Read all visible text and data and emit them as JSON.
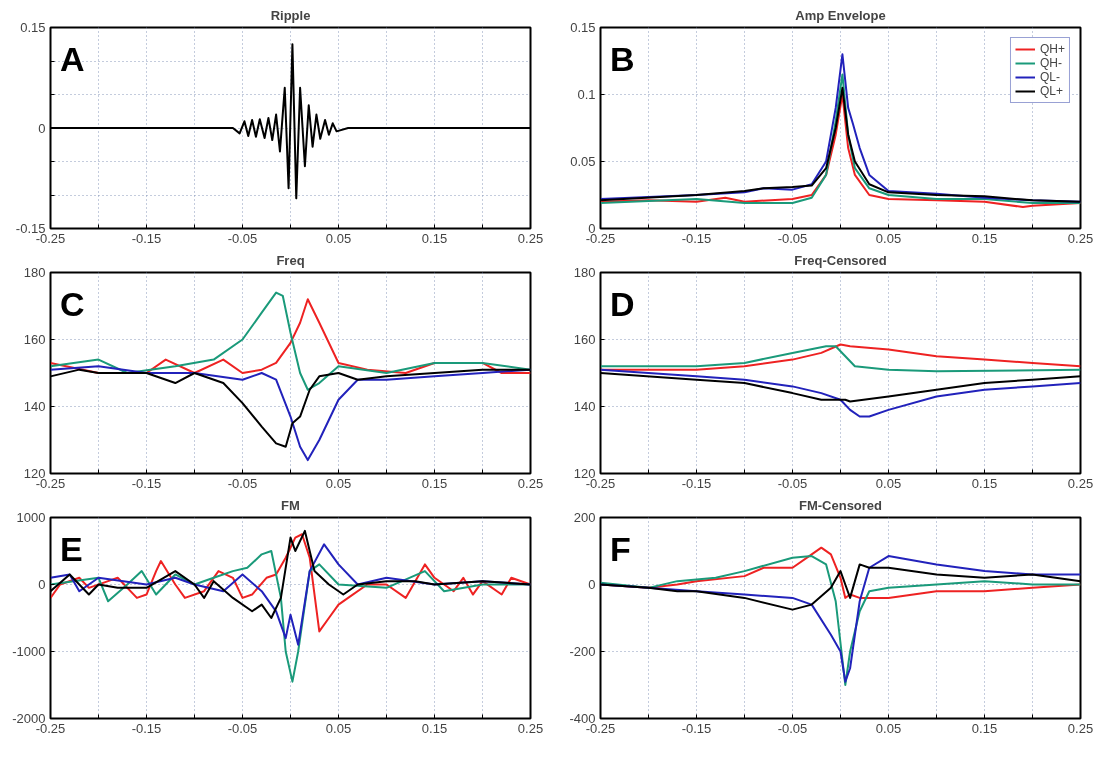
{
  "chart_data": [
    {
      "type": "line",
      "title": "Ripple",
      "annotations": [
        "A"
      ],
      "xlim": [
        -0.25,
        0.25
      ],
      "ylim": [
        -0.15,
        0.15
      ],
      "xticks": [
        -0.25,
        {
          "value": -0.2,
          "label": null
        },
        -0.15,
        {
          "value": -0.1,
          "label": null
        },
        -0.05,
        {
          "value": 0,
          "label": null
        },
        0.05,
        {
          "value": 0.1,
          "label": null
        },
        0.15,
        {
          "value": 0.2,
          "label": null
        },
        0.25
      ],
      "yticks": [
        -0.15,
        {
          "value": -0.1,
          "label": null
        },
        {
          "value": -0.05,
          "label": null
        },
        0,
        {
          "value": 0.05,
          "label": null
        },
        {
          "value": 0.1,
          "label": null
        },
        0.15
      ],
      "grid": true,
      "series": [
        {
          "color": "#000000",
          "x": [
            -0.25,
            -0.06,
            -0.053,
            -0.048,
            -0.044,
            -0.04,
            -0.036,
            -0.032,
            -0.027,
            -0.023,
            -0.019,
            -0.015,
            -0.011,
            -0.006,
            -0.002,
            0.002,
            0.006,
            0.01,
            0.015,
            0.019,
            0.023,
            0.027,
            0.031,
            0.036,
            0.04,
            0.044,
            0.048,
            0.06,
            0.25
          ],
          "values": [
            0,
            0,
            -0.008,
            0.01,
            -0.012,
            0.012,
            -0.013,
            0.013,
            -0.015,
            0.015,
            -0.018,
            0.02,
            -0.035,
            0.06,
            -0.09,
            0.125,
            -0.105,
            0.06,
            -0.057,
            0.034,
            -0.028,
            0.02,
            -0.016,
            0.012,
            -0.01,
            0.007,
            -0.005,
            0,
            0
          ]
        }
      ]
    },
    {
      "type": "line",
      "title": "Amp Envelope",
      "annotations": [
        "B"
      ],
      "xlim": [
        -0.25,
        0.25
      ],
      "ylim": [
        0,
        0.15
      ],
      "xticks": [
        -0.25,
        {
          "value": -0.2,
          "label": null
        },
        -0.15,
        {
          "value": -0.1,
          "label": null
        },
        -0.05,
        {
          "value": 0,
          "label": null
        },
        0.05,
        {
          "value": 0.1,
          "label": null
        },
        0.15,
        {
          "value": 0.2,
          "label": null
        },
        0.25
      ],
      "yticks": [
        0,
        0.05,
        0.1,
        0.15
      ],
      "grid": true,
      "legend": "top right",
      "series": [
        {
          "name": "QH+",
          "color": "#ee2222",
          "x": [
            -0.25,
            -0.2,
            -0.15,
            -0.12,
            -0.1,
            -0.05,
            -0.03,
            -0.015,
            -0.005,
            0.002,
            0.008,
            0.015,
            0.03,
            0.05,
            0.1,
            0.15,
            0.19,
            0.2,
            0.25
          ],
          "values": [
            0.02,
            0.021,
            0.02,
            0.023,
            0.02,
            0.022,
            0.025,
            0.04,
            0.07,
            0.1,
            0.06,
            0.04,
            0.025,
            0.022,
            0.021,
            0.02,
            0.016,
            0.017,
            0.019
          ]
        },
        {
          "name": "QH-",
          "color": "#1a9a7a",
          "x": [
            -0.25,
            -0.15,
            -0.1,
            -0.05,
            -0.03,
            -0.015,
            -0.005,
            0.002,
            0.008,
            0.015,
            0.03,
            0.05,
            0.1,
            0.15,
            0.2,
            0.25
          ],
          "values": [
            0.019,
            0.022,
            0.019,
            0.019,
            0.023,
            0.04,
            0.08,
            0.115,
            0.07,
            0.045,
            0.03,
            0.025,
            0.022,
            0.022,
            0.019,
            0.019
          ]
        },
        {
          "name": "QL-",
          "color": "#2222bb",
          "x": [
            -0.25,
            -0.15,
            -0.1,
            -0.08,
            -0.05,
            -0.03,
            -0.015,
            -0.005,
            0.002,
            0.008,
            0.013,
            0.02,
            0.03,
            0.05,
            0.1,
            0.15,
            0.2,
            0.25
          ],
          "values": [
            0.022,
            0.025,
            0.027,
            0.03,
            0.029,
            0.033,
            0.05,
            0.09,
            0.13,
            0.09,
            0.078,
            0.06,
            0.04,
            0.028,
            0.026,
            0.023,
            0.021,
            0.02
          ]
        },
        {
          "name": "QL+",
          "color": "#000000",
          "x": [
            -0.25,
            -0.15,
            -0.1,
            -0.08,
            -0.05,
            -0.03,
            -0.015,
            -0.005,
            0.002,
            0.008,
            0.015,
            0.03,
            0.05,
            0.1,
            0.15,
            0.2,
            0.25
          ],
          "values": [
            0.021,
            0.025,
            0.028,
            0.03,
            0.031,
            0.032,
            0.045,
            0.075,
            0.105,
            0.07,
            0.05,
            0.033,
            0.027,
            0.025,
            0.024,
            0.021,
            0.02
          ]
        }
      ]
    },
    {
      "type": "line",
      "title": "Freq",
      "annotations": [
        "C"
      ],
      "xlim": [
        -0.25,
        0.25
      ],
      "ylim": [
        120,
        180
      ],
      "xticks": [
        -0.25,
        {
          "value": -0.2,
          "label": null
        },
        -0.15,
        {
          "value": -0.1,
          "label": null
        },
        -0.05,
        {
          "value": 0,
          "label": null
        },
        0.05,
        {
          "value": 0.1,
          "label": null
        },
        0.15,
        {
          "value": 0.2,
          "label": null
        },
        0.25
      ],
      "yticks": [
        120,
        140,
        160,
        180
      ],
      "grid": true,
      "series": [
        {
          "color": "#ee2222",
          "x": [
            -0.25,
            -0.2,
            -0.15,
            -0.13,
            -0.1,
            -0.07,
            -0.05,
            -0.03,
            -0.015,
            0,
            0.01,
            0.018,
            0.03,
            0.05,
            0.08,
            0.12,
            0.15,
            0.2,
            0.22,
            0.25
          ],
          "values": [
            153,
            150,
            150,
            154,
            150,
            154,
            150,
            151,
            153,
            159,
            165,
            172,
            165,
            153,
            151,
            150,
            153,
            153,
            150,
            150
          ]
        },
        {
          "color": "#1a9a7a",
          "x": [
            -0.25,
            -0.2,
            -0.17,
            -0.12,
            -0.08,
            -0.05,
            -0.03,
            -0.015,
            -0.008,
            0,
            0.01,
            0.018,
            0.03,
            0.05,
            0.1,
            0.15,
            0.2,
            0.25
          ],
          "values": [
            152,
            154,
            150,
            152,
            154,
            160,
            168,
            174,
            173,
            162,
            150,
            145,
            147,
            152,
            150,
            153,
            153,
            151
          ]
        },
        {
          "color": "#2222bb",
          "x": [
            -0.25,
            -0.2,
            -0.15,
            -0.1,
            -0.05,
            -0.03,
            -0.015,
            0,
            0.01,
            0.018,
            0.03,
            0.05,
            0.07,
            0.1,
            0.15,
            0.2,
            0.25
          ],
          "values": [
            151,
            152,
            150,
            150,
            148,
            150,
            148,
            137,
            128,
            124,
            130,
            142,
            148,
            148,
            149,
            150,
            151
          ]
        },
        {
          "color": "#000000",
          "x": [
            -0.25,
            -0.22,
            -0.2,
            -0.15,
            -0.12,
            -0.1,
            -0.07,
            -0.05,
            -0.03,
            -0.015,
            -0.005,
            0.002,
            0.01,
            0.02,
            0.03,
            0.05,
            0.07,
            0.1,
            0.15,
            0.2,
            0.25
          ],
          "values": [
            149,
            151,
            150,
            150,
            147,
            150,
            147,
            141,
            134,
            129,
            128,
            135,
            137,
            145,
            149,
            150,
            148,
            149,
            150,
            151,
            151
          ]
        }
      ]
    },
    {
      "type": "line",
      "title": "Freq-Censored",
      "annotations": [
        "D"
      ],
      "xlim": [
        -0.25,
        0.25
      ],
      "ylim": [
        120,
        180
      ],
      "xticks": [
        -0.25,
        {
          "value": -0.2,
          "label": null
        },
        -0.15,
        {
          "value": -0.1,
          "label": null
        },
        -0.05,
        {
          "value": 0,
          "label": null
        },
        0.05,
        {
          "value": 0.1,
          "label": null
        },
        0.15,
        {
          "value": 0.2,
          "label": null
        },
        0.25
      ],
      "yticks": [
        120,
        140,
        160,
        180
      ],
      "grid": true,
      "series": [
        {
          "color": "#ee2222",
          "x": [
            -0.25,
            -0.15,
            -0.1,
            -0.05,
            -0.02,
            0,
            0.01,
            0.05,
            0.1,
            0.15,
            0.2,
            0.25
          ],
          "values": [
            151,
            151,
            152,
            154,
            156,
            158.5,
            158,
            157,
            155,
            154,
            153,
            152
          ]
        },
        {
          "color": "#1a9a7a",
          "x": [
            -0.25,
            -0.15,
            -0.1,
            -0.05,
            -0.015,
            -0.005,
            0.005,
            0.015,
            0.05,
            0.1,
            0.25
          ],
          "values": [
            152,
            152,
            153,
            156,
            158,
            158,
            155,
            152,
            151,
            150.5,
            151
          ]
        },
        {
          "color": "#2222bb",
          "x": [
            -0.25,
            -0.15,
            -0.1,
            -0.05,
            -0.02,
            0,
            0.01,
            0.02,
            0.03,
            0.05,
            0.1,
            0.15,
            0.2,
            0.25
          ],
          "values": [
            151,
            149,
            148,
            146,
            144,
            142,
            139,
            137,
            137,
            139,
            143,
            145,
            146,
            147
          ]
        },
        {
          "color": "#000000",
          "x": [
            -0.25,
            -0.15,
            -0.1,
            -0.05,
            -0.02,
            0,
            0.005,
            0.01,
            0.05,
            0.1,
            0.15,
            0.2,
            0.25
          ],
          "values": [
            150,
            148,
            147,
            144,
            142,
            142,
            142,
            141.5,
            143,
            145,
            147,
            148,
            149
          ]
        }
      ]
    },
    {
      "type": "line",
      "title": "FM",
      "annotations": [
        "E"
      ],
      "xlim": [
        -0.25,
        0.25
      ],
      "ylim": [
        -2000,
        1000
      ],
      "xticks": [
        -0.25,
        {
          "value": -0.2,
          "label": null
        },
        -0.15,
        {
          "value": -0.1,
          "label": null
        },
        -0.05,
        {
          "value": 0,
          "label": null
        },
        0.05,
        {
          "value": 0.1,
          "label": null
        },
        0.15,
        {
          "value": 0.2,
          "label": null
        },
        0.25
      ],
      "yticks": [
        -2000,
        -1000,
        0,
        1000
      ],
      "grid": true,
      "series": [
        {
          "color": "#ee2222",
          "x": [
            -0.25,
            -0.24,
            -0.22,
            -0.21,
            -0.19,
            -0.18,
            -0.16,
            -0.15,
            -0.14,
            -0.135,
            -0.12,
            -0.11,
            -0.09,
            -0.075,
            -0.06,
            -0.05,
            -0.04,
            -0.025,
            -0.015,
            -0.005,
            0.005,
            0.012,
            0.02,
            0.03,
            0.04,
            0.05,
            0.06,
            0.08,
            0.1,
            0.12,
            0.14,
            0.15,
            0.17,
            0.18,
            0.19,
            0.2,
            0.22,
            0.23,
            0.25
          ],
          "values": [
            -200,
            0,
            100,
            -50,
            50,
            100,
            -200,
            -150,
            200,
            350,
            0,
            -200,
            -100,
            200,
            100,
            -200,
            -150,
            100,
            150,
            400,
            700,
            750,
            400,
            -700,
            -500,
            -300,
            -200,
            0,
            0,
            -200,
            300,
            100,
            -100,
            100,
            -150,
            50,
            -150,
            100,
            0
          ]
        },
        {
          "color": "#1a9a7a",
          "x": [
            -0.25,
            -0.2,
            -0.19,
            -0.17,
            -0.155,
            -0.14,
            -0.12,
            -0.1,
            -0.08,
            -0.06,
            -0.045,
            -0.03,
            -0.02,
            -0.01,
            -0.005,
            0.002,
            0.008,
            0.02,
            0.03,
            0.05,
            0.1,
            0.14,
            0.16,
            0.2,
            0.25
          ],
          "values": [
            0,
            100,
            -250,
            0,
            200,
            -150,
            150,
            0,
            100,
            200,
            250,
            450,
            500,
            -200,
            -1000,
            -1450,
            -1000,
            200,
            300,
            0,
            -50,
            200,
            -100,
            0,
            0
          ]
        },
        {
          "color": "#2222bb",
          "x": [
            -0.25,
            -0.23,
            -0.22,
            -0.2,
            -0.15,
            -0.12,
            -0.1,
            -0.07,
            -0.05,
            -0.03,
            -0.015,
            -0.005,
            0,
            0.008,
            0.02,
            0.035,
            0.05,
            0.07,
            0.1,
            0.15,
            0.2,
            0.25
          ],
          "values": [
            100,
            150,
            -100,
            100,
            0,
            100,
            0,
            -100,
            150,
            -100,
            -400,
            -800,
            -450,
            -900,
            200,
            600,
            300,
            0,
            100,
            0,
            50,
            0
          ]
        },
        {
          "color": "#000000",
          "x": [
            -0.25,
            -0.23,
            -0.21,
            -0.2,
            -0.18,
            -0.15,
            -0.12,
            -0.1,
            -0.09,
            -0.08,
            -0.06,
            -0.04,
            -0.03,
            -0.02,
            -0.01,
            0,
            0.005,
            0.015,
            0.025,
            0.04,
            0.055,
            0.07,
            0.1,
            0.13,
            0.15,
            0.2,
            0.25
          ],
          "values": [
            -100,
            150,
            -150,
            0,
            -50,
            -50,
            200,
            0,
            -200,
            50,
            -200,
            -400,
            -300,
            -500,
            -200,
            700,
            500,
            800,
            200,
            0,
            -150,
            0,
            50,
            50,
            0,
            50,
            0
          ]
        }
      ]
    },
    {
      "type": "line",
      "title": "FM-Censored",
      "annotations": [
        "F"
      ],
      "xlim": [
        -0.25,
        0.25
      ],
      "ylim": [
        -400,
        200
      ],
      "xticks": [
        -0.25,
        {
          "value": -0.2,
          "label": null
        },
        -0.15,
        {
          "value": -0.1,
          "label": null
        },
        -0.05,
        {
          "value": 0,
          "label": null
        },
        0.05,
        {
          "value": 0.1,
          "label": null
        },
        0.15,
        {
          "value": 0.2,
          "label": null
        },
        0.25
      ],
      "yticks": [
        -400,
        -200,
        0,
        200
      ],
      "grid": true,
      "series": [
        {
          "color": "#ee2222",
          "x": [
            -0.25,
            -0.2,
            -0.17,
            -0.15,
            -0.1,
            -0.08,
            -0.05,
            -0.03,
            -0.02,
            -0.01,
            0,
            0.005,
            0.01,
            0.02,
            0.05,
            0.1,
            0.13,
            0.15,
            0.2,
            0.25
          ],
          "values": [
            0,
            -10,
            0,
            10,
            25,
            50,
            50,
            90,
            110,
            90,
            20,
            -40,
            -30,
            -40,
            -40,
            -20,
            -20,
            -20,
            -10,
            0
          ]
        },
        {
          "color": "#1a9a7a",
          "x": [
            -0.25,
            -0.2,
            -0.17,
            -0.13,
            -0.1,
            -0.05,
            -0.03,
            -0.015,
            -0.005,
            0.005,
            0.01,
            0.02,
            0.03,
            0.05,
            0.1,
            0.15,
            0.2,
            0.25
          ],
          "values": [
            5,
            -10,
            10,
            20,
            40,
            80,
            85,
            60,
            -50,
            -300,
            -200,
            -80,
            -20,
            -10,
            0,
            10,
            0,
            0
          ]
        },
        {
          "color": "#2222bb",
          "x": [
            -0.25,
            -0.2,
            -0.15,
            -0.1,
            -0.05,
            -0.03,
            -0.01,
            0,
            0.005,
            0.01,
            0.02,
            0.03,
            0.05,
            0.1,
            0.15,
            0.2,
            0.25
          ],
          "values": [
            0,
            -10,
            -20,
            -30,
            -40,
            -60,
            -150,
            -200,
            -290,
            -250,
            -50,
            50,
            85,
            60,
            40,
            30,
            30
          ]
        },
        {
          "color": "#000000",
          "x": [
            -0.25,
            -0.2,
            -0.17,
            -0.15,
            -0.1,
            -0.05,
            -0.03,
            -0.01,
            0,
            0.005,
            0.01,
            0.015,
            0.02,
            0.03,
            0.05,
            0.1,
            0.15,
            0.2,
            0.25
          ],
          "values": [
            0,
            -10,
            -20,
            -20,
            -40,
            -75,
            -60,
            -10,
            40,
            0,
            -40,
            10,
            60,
            50,
            50,
            30,
            20,
            30,
            10
          ]
        }
      ]
    }
  ]
}
